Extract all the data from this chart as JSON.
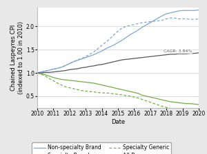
{
  "title": "",
  "xlabel": "Date",
  "ylabel": "Chained Laspeyres CPI\n(indexed to 1.00 in 2010)",
  "ylim": [
    0.25,
    2.4
  ],
  "xlim": [
    2010,
    2020
  ],
  "cagr_label": "CAGR: 3.84%",
  "cagr_x": 2017.8,
  "cagr_y": 1.43,
  "years": [
    2010,
    2010.25,
    2010.5,
    2010.75,
    2011,
    2011.25,
    2011.5,
    2011.75,
    2012,
    2012.25,
    2012.5,
    2012.75,
    2013,
    2013.25,
    2013.5,
    2013.75,
    2014,
    2014.25,
    2014.5,
    2014.75,
    2015,
    2015.25,
    2015.5,
    2015.75,
    2016,
    2016.25,
    2016.5,
    2016.75,
    2017,
    2017.25,
    2017.5,
    2017.75,
    2018,
    2018.25,
    2018.5,
    2018.75,
    2019,
    2019.25,
    2019.5,
    2019.75,
    2020
  ],
  "non_specialty_brand": [
    1.0,
    1.02,
    1.04,
    1.06,
    1.08,
    1.1,
    1.12,
    1.16,
    1.2,
    1.24,
    1.27,
    1.3,
    1.33,
    1.36,
    1.39,
    1.43,
    1.47,
    1.52,
    1.56,
    1.6,
    1.65,
    1.7,
    1.76,
    1.82,
    1.87,
    1.92,
    1.98,
    2.03,
    2.08,
    2.13,
    2.18,
    2.23,
    2.27,
    2.29,
    2.31,
    2.33,
    2.34,
    2.34,
    2.34,
    2.34,
    2.35
  ],
  "specialty_brand": [
    1.0,
    1.02,
    1.04,
    1.06,
    1.08,
    1.1,
    1.12,
    1.16,
    1.2,
    1.24,
    1.28,
    1.31,
    1.35,
    1.4,
    1.45,
    1.52,
    1.59,
    1.66,
    1.73,
    1.82,
    1.9,
    1.96,
    2.0,
    2.02,
    2.04,
    2.06,
    2.08,
    2.09,
    2.1,
    2.11,
    2.12,
    2.13,
    2.16,
    2.18,
    2.18,
    2.16,
    2.16,
    2.16,
    2.15,
    2.15,
    2.16
  ],
  "non_specialty_generic": [
    1.0,
    0.98,
    0.96,
    0.93,
    0.9,
    0.88,
    0.86,
    0.85,
    0.84,
    0.83,
    0.82,
    0.81,
    0.8,
    0.79,
    0.78,
    0.76,
    0.74,
    0.72,
    0.7,
    0.68,
    0.66,
    0.64,
    0.62,
    0.6,
    0.58,
    0.56,
    0.52,
    0.5,
    0.48,
    0.46,
    0.44,
    0.42,
    0.4,
    0.38,
    0.37,
    0.36,
    0.35,
    0.34,
    0.34,
    0.33,
    0.32
  ],
  "specialty_generic": [
    1.0,
    0.97,
    0.93,
    0.88,
    0.83,
    0.78,
    0.74,
    0.7,
    0.68,
    0.66,
    0.64,
    0.62,
    0.61,
    0.6,
    0.59,
    0.58,
    0.57,
    0.57,
    0.56,
    0.55,
    0.54,
    0.53,
    0.51,
    0.5,
    0.48,
    0.46,
    0.43,
    0.4,
    0.37,
    0.34,
    0.31,
    0.28,
    0.26,
    0.24,
    0.22,
    0.21,
    0.2,
    0.19,
    0.18,
    0.17,
    0.17
  ],
  "all_drugs": [
    1.0,
    1.0,
    1.01,
    1.01,
    1.02,
    1.03,
    1.04,
    1.05,
    1.07,
    1.08,
    1.09,
    1.11,
    1.12,
    1.14,
    1.15,
    1.17,
    1.18,
    1.2,
    1.22,
    1.24,
    1.26,
    1.28,
    1.29,
    1.3,
    1.31,
    1.32,
    1.33,
    1.34,
    1.35,
    1.36,
    1.37,
    1.38,
    1.39,
    1.4,
    1.4,
    1.41,
    1.41,
    1.41,
    1.42,
    1.42,
    1.43
  ],
  "color_blue": "#7BA7D4",
  "color_green": "#70AD47",
  "color_dark": "#555555",
  "bg_color": "#E8E8E8",
  "plot_bg": "#FFFFFF",
  "tick_fontsize": 5.5,
  "label_fontsize": 6,
  "legend_fontsize": 5.5,
  "yticks": [
    0.5,
    1.0,
    1.5,
    2.0
  ],
  "xticks": [
    2010,
    2011,
    2012,
    2013,
    2014,
    2015,
    2016,
    2017,
    2018,
    2019,
    2020
  ],
  "xticklabels": [
    "2010",
    "2011",
    "2012",
    "2013",
    "2014",
    "2015",
    "2016",
    "2017",
    "2018",
    "2019",
    "2020"
  ]
}
